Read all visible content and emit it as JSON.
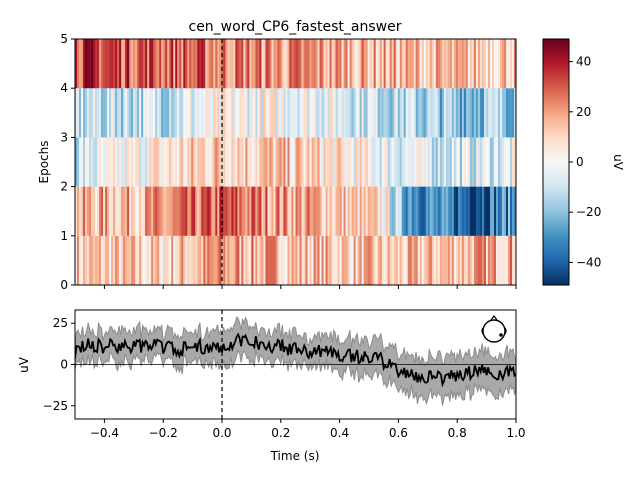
{
  "chart_data": [
    {
      "type": "heatmap",
      "title": "cen_word_CP6_fastest_answer",
      "ylabel": "Epochs",
      "xlim": [
        -0.5,
        1.0
      ],
      "ylim": [
        0,
        5
      ],
      "yticks": [
        "0",
        "1",
        "2",
        "3",
        "4",
        "5"
      ],
      "colormap": "RdBu_r",
      "vmin": -49,
      "vmax": 49,
      "event_marker_x": 0.0,
      "colorbar": {
        "label": "uV",
        "ticks": [
          40,
          20,
          0,
          -20,
          -40
        ],
        "tick_labels": [
          "40",
          "20",
          "0",
          "−20",
          "−40"
        ]
      },
      "epochs": [
        {
          "epoch": 1,
          "note": "bottom row (0-1)",
          "mean_profile": [
            [
              -0.5,
              12
            ],
            [
              -0.2,
              10
            ],
            [
              0.0,
              20
            ],
            [
              0.3,
              14
            ],
            [
              0.6,
              10
            ],
            [
              0.8,
              16
            ],
            [
              1.0,
              18
            ]
          ]
        },
        {
          "epoch": 2,
          "note": "row 1-2",
          "mean_profile": [
            [
              -0.5,
              15
            ],
            [
              -0.2,
              18
            ],
            [
              0.0,
              28
            ],
            [
              0.3,
              18
            ],
            [
              0.55,
              5
            ],
            [
              0.6,
              -20
            ],
            [
              0.75,
              -35
            ],
            [
              0.85,
              -38
            ],
            [
              1.0,
              -30
            ]
          ]
        },
        {
          "epoch": 3,
          "note": "row 2-3",
          "mean_profile": [
            [
              -0.5,
              -10
            ],
            [
              -0.2,
              5
            ],
            [
              0.0,
              15
            ],
            [
              0.3,
              10
            ],
            [
              0.6,
              -5
            ],
            [
              0.8,
              -8
            ],
            [
              1.0,
              -5
            ]
          ]
        },
        {
          "epoch": 4,
          "note": "row 3-4",
          "mean_profile": [
            [
              -0.5,
              -12
            ],
            [
              -0.2,
              -10
            ],
            [
              0.0,
              0
            ],
            [
              0.3,
              0
            ],
            [
              0.6,
              -12
            ],
            [
              0.8,
              -20
            ],
            [
              1.0,
              -15
            ]
          ]
        },
        {
          "epoch": 5,
          "note": "top row (4-5)",
          "mean_profile": [
            [
              -0.5,
              35
            ],
            [
              -0.2,
              30
            ],
            [
              0.0,
              25
            ],
            [
              0.3,
              20
            ],
            [
              0.6,
              15
            ],
            [
              0.8,
              12
            ],
            [
              1.0,
              15
            ]
          ]
        }
      ]
    },
    {
      "type": "line",
      "xlabel": "Time (s)",
      "ylabel": "uV",
      "xlim": [
        -0.5,
        1.0
      ],
      "ylim": [
        -33,
        33
      ],
      "xticks": [
        -0.4,
        -0.2,
        0.0,
        0.2,
        0.4,
        0.6,
        0.8,
        1.0
      ],
      "xtick_labels": [
        "−0.4",
        "−0.2",
        "0.0",
        "0.2",
        "0.4",
        "0.6",
        "0.8",
        "1.0"
      ],
      "yticks": [
        25,
        0,
        -25
      ],
      "ytick_labels": [
        "25",
        "0",
        "−25"
      ],
      "event_marker_x": 0.0,
      "zero_line": true,
      "series": [
        {
          "role": "mean",
          "color": "#000000",
          "points": [
            [
              -0.5,
              8
            ],
            [
              -0.45,
              12
            ],
            [
              -0.4,
              10
            ],
            [
              -0.35,
              12
            ],
            [
              -0.3,
              10
            ],
            [
              -0.25,
              12
            ],
            [
              -0.2,
              11
            ],
            [
              -0.15,
              9
            ],
            [
              -0.1,
              10
            ],
            [
              -0.05,
              11
            ],
            [
              0.0,
              10
            ],
            [
              0.05,
              15
            ],
            [
              0.1,
              14
            ],
            [
              0.15,
              12
            ],
            [
              0.2,
              11
            ],
            [
              0.25,
              9
            ],
            [
              0.3,
              8
            ],
            [
              0.35,
              8
            ],
            [
              0.4,
              6
            ],
            [
              0.45,
              5
            ],
            [
              0.5,
              4
            ],
            [
              0.55,
              2
            ],
            [
              0.6,
              -3
            ],
            [
              0.65,
              -7
            ],
            [
              0.7,
              -8
            ],
            [
              0.75,
              -8
            ],
            [
              0.8,
              -7
            ],
            [
              0.85,
              -5
            ],
            [
              0.9,
              -4
            ],
            [
              0.95,
              -5
            ],
            [
              1.0,
              -6
            ]
          ]
        }
      ],
      "band": {
        "color": "#a9a9a9",
        "halfwidth": [
          [
            -0.5,
            9
          ],
          [
            -0.2,
            9
          ],
          [
            0.0,
            10
          ],
          [
            0.3,
            9
          ],
          [
            0.6,
            11
          ],
          [
            0.8,
            12
          ],
          [
            1.0,
            11
          ]
        ]
      },
      "inset": "head-sensor-map"
    }
  ]
}
